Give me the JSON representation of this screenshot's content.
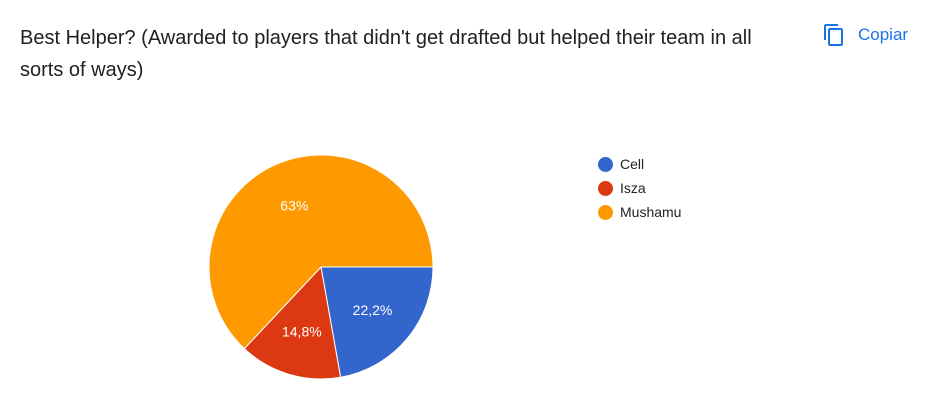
{
  "question": {
    "title": "Best Helper? (Awarded to players that didn't get drafted but helped their team in all sorts of ways)"
  },
  "copy_button": {
    "label": "Copiar",
    "icon": "copy-icon"
  },
  "colors": {
    "accent": "#1a73e8",
    "series": [
      "#3366cc",
      "#dc3912",
      "#ff9900"
    ]
  },
  "chart_data": {
    "type": "pie",
    "title": "",
    "categories": [
      "Cell",
      "Isza",
      "Mushamu"
    ],
    "values": [
      22.2,
      14.8,
      63
    ],
    "labels": [
      "22,2%",
      "14,8%",
      "63%"
    ],
    "legend_position": "right"
  }
}
